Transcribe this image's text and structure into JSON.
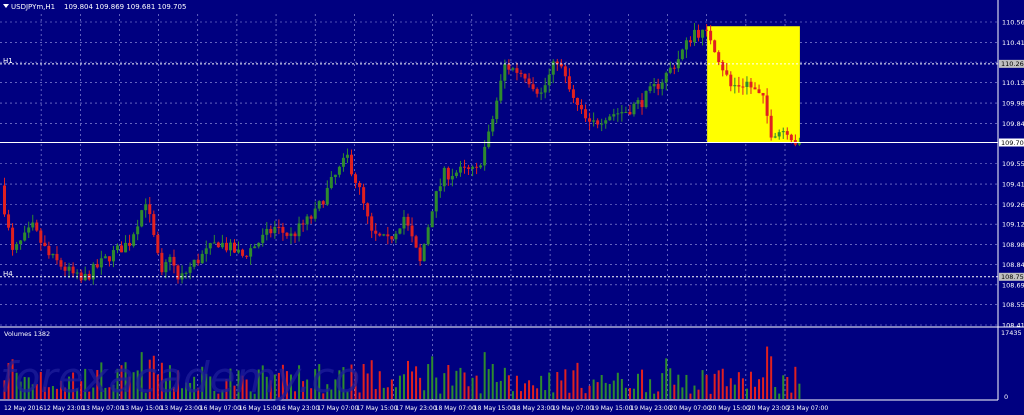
{
  "window": {
    "header_symbol": "USDJPYm,H1",
    "header_ohlc": "109.804 109.869 109.681 109.705",
    "volume_label": "Volumes 1382",
    "h1_label": "H1",
    "h4_label": "H4"
  },
  "colors": {
    "background": "#000080",
    "grid": "#c8c8ff",
    "bull": "#2e8b2e",
    "bear": "#e02020",
    "highlight": "#ffff00",
    "axis_text": "#ffffff",
    "price_tag_bg": "#c0c0c0"
  },
  "watermark": "forexacademy.co",
  "chart_data": {
    "type": "candlestick",
    "price_axis": {
      "ylim": [
        108.41,
        110.56
      ],
      "ticks": [
        "110.560",
        "110.415",
        "110.275",
        "110.130",
        "109.985",
        "109.840",
        "109.705",
        "109.555",
        "109.410",
        "109.265",
        "109.125",
        "108.980",
        "108.840",
        "108.695",
        "108.555",
        "108.410"
      ],
      "current_price": "109.705",
      "level_h1": "110.263",
      "level_h4": "108.752"
    },
    "time_axis": {
      "labels": [
        "12 May 2016",
        "12 May 23:00",
        "13 May 07:00",
        "13 May 15:00",
        "13 May 23:00",
        "16 May 07:00",
        "16 May 15:00",
        "16 May 23:00",
        "17 May 07:00",
        "17 May 15:00",
        "17 May 23:00",
        "18 May 07:00",
        "18 May 15:00",
        "18 May 23:00",
        "19 May 07:00",
        "19 May 15:00",
        "19 May 23:00",
        "20 May 07:00",
        "20 May 15:00",
        "20 May 23:00",
        "23 May 07:00"
      ]
    },
    "volume_axis": {
      "max_label": "17435",
      "min_label": "0",
      "max": 17435
    },
    "highlight_box": {
      "from_candle": 175,
      "to_candle": 197,
      "price_top": 110.53,
      "price_bottom": 109.705
    },
    "anchors": [
      [
        0,
        109.4
      ],
      [
        3,
        108.92
      ],
      [
        8,
        109.1
      ],
      [
        12,
        108.9
      ],
      [
        20,
        108.72
      ],
      [
        27,
        108.9
      ],
      [
        32,
        109.0
      ],
      [
        36,
        109.3
      ],
      [
        40,
        108.75
      ],
      [
        42,
        108.92
      ],
      [
        44,
        108.72
      ],
      [
        48,
        108.85
      ],
      [
        54,
        109.0
      ],
      [
        60,
        108.9
      ],
      [
        68,
        109.1
      ],
      [
        72,
        109.04
      ],
      [
        78,
        109.2
      ],
      [
        82,
        109.42
      ],
      [
        86,
        109.6
      ],
      [
        89,
        109.36
      ],
      [
        92,
        109.05
      ],
      [
        96,
        109.0
      ],
      [
        100,
        109.18
      ],
      [
        104,
        108.85
      ],
      [
        107,
        109.25
      ],
      [
        110,
        109.48
      ],
      [
        114,
        109.5
      ],
      [
        118,
        109.5
      ],
      [
        121,
        109.75
      ],
      [
        125,
        110.25
      ],
      [
        130,
        110.19
      ],
      [
        134,
        110.05
      ],
      [
        138,
        110.3
      ],
      [
        142,
        110.0
      ],
      [
        146,
        109.82
      ],
      [
        150,
        109.9
      ],
      [
        155,
        109.93
      ],
      [
        159,
        110.0
      ],
      [
        164,
        110.15
      ],
      [
        168,
        110.3
      ],
      [
        172,
        110.5
      ],
      [
        176,
        110.45
      ],
      [
        181,
        110.1
      ],
      [
        185,
        110.13
      ],
      [
        189,
        110.0
      ],
      [
        191,
        109.78
      ],
      [
        195,
        109.8
      ],
      [
        197,
        109.71
      ]
    ],
    "candle_count": 198,
    "volume_range": [
      1500,
      14000
    ]
  }
}
